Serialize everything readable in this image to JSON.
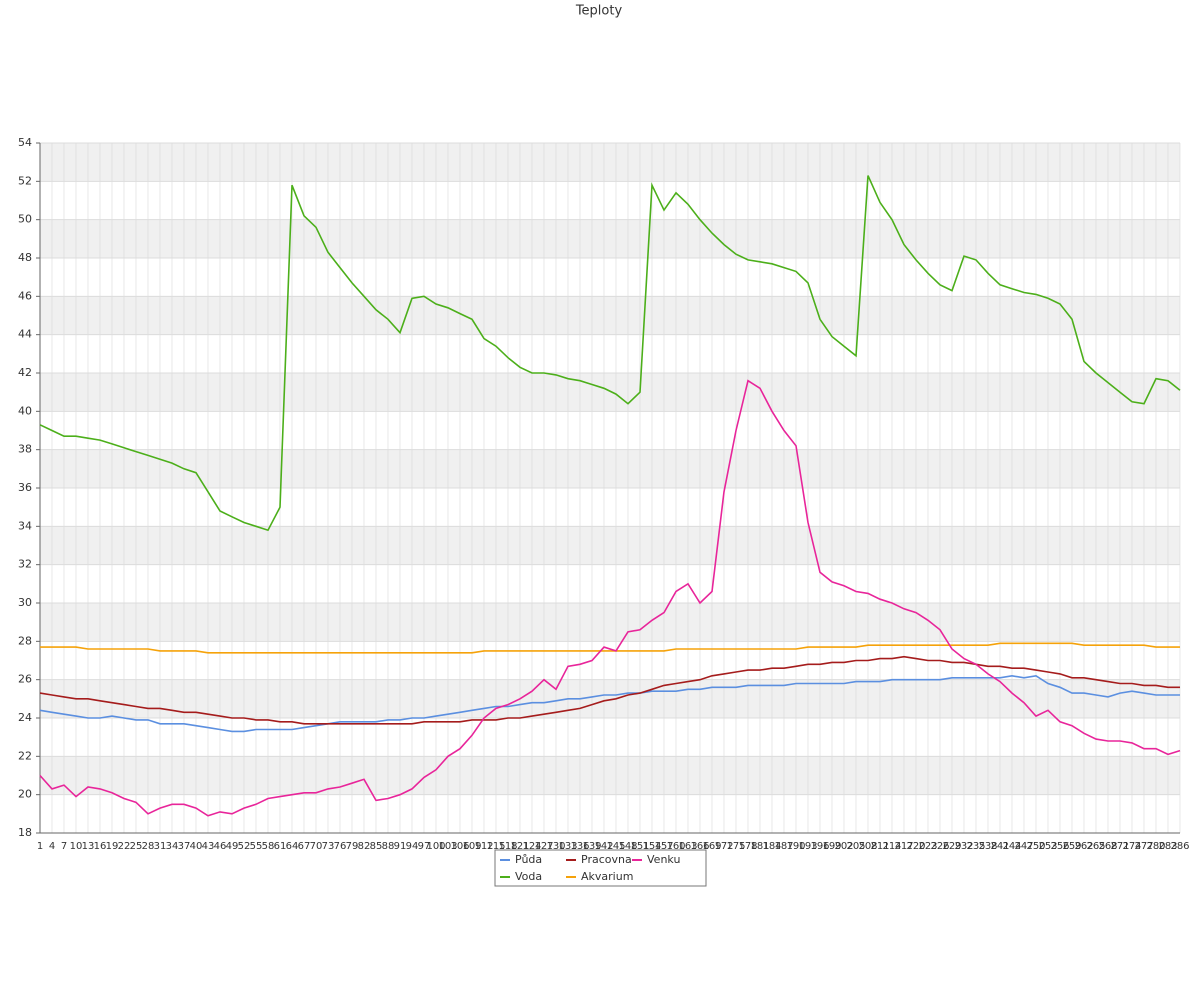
{
  "chart_data": {
    "type": "line",
    "title": "Teploty",
    "categories": [
      1,
      4,
      7,
      10,
      13,
      16,
      19,
      22,
      25,
      28,
      31,
      34,
      37,
      40,
      43,
      46,
      49,
      52,
      55,
      58,
      61,
      64,
      67,
      70,
      73,
      76,
      79,
      82,
      85,
      88,
      91,
      94,
      97,
      100,
      103,
      106,
      109,
      112,
      115,
      118,
      121,
      124,
      127,
      130,
      133,
      136,
      139,
      142,
      145,
      148,
      151,
      154,
      157,
      160,
      163,
      166,
      169,
      172,
      175,
      178,
      181,
      184,
      187,
      190,
      193,
      196,
      199,
      202,
      205,
      208,
      211,
      214,
      217,
      220,
      223,
      226,
      229,
      232,
      235,
      238,
      241,
      244,
      247,
      250,
      253,
      256,
      259,
      262,
      265,
      268,
      271,
      274,
      277,
      280,
      283,
      286
    ],
    "ylim": [
      18,
      54
    ],
    "yticks": [
      18,
      20,
      22,
      24,
      26,
      28,
      30,
      32,
      34,
      36,
      38,
      40,
      42,
      44,
      46,
      48,
      50,
      52,
      54
    ],
    "grid": true,
    "legend": "bottom",
    "series": [
      {
        "name": "Půda",
        "color": "#5b8fe0",
        "values": [
          24.4,
          24.3,
          24.2,
          24.1,
          24.0,
          24.0,
          24.1,
          24.0,
          23.9,
          23.9,
          23.7,
          23.7,
          23.7,
          23.6,
          23.5,
          23.4,
          23.3,
          23.3,
          23.4,
          23.4,
          23.4,
          23.4,
          23.5,
          23.6,
          23.7,
          23.8,
          23.8,
          23.8,
          23.8,
          23.9,
          23.9,
          24.0,
          24.0,
          24.1,
          24.2,
          24.3,
          24.4,
          24.5,
          24.6,
          24.6,
          24.7,
          24.8,
          24.8,
          24.9,
          25.0,
          25.0,
          25.1,
          25.2,
          25.2,
          25.3,
          25.3,
          25.4,
          25.4,
          25.4,
          25.5,
          25.5,
          25.6,
          25.6,
          25.6,
          25.7,
          25.7,
          25.7,
          25.7,
          25.8,
          25.8,
          25.8,
          25.8,
          25.8,
          25.9,
          25.9,
          25.9,
          26.0,
          26.0,
          26.0,
          26.0,
          26.0,
          26.1,
          26.1,
          26.1,
          26.1,
          26.1,
          26.2,
          26.1,
          26.2,
          25.8,
          25.6,
          25.3,
          25.3,
          25.2,
          25.1,
          25.3,
          25.4,
          25.3,
          25.2,
          25.2,
          25.2
        ]
      },
      {
        "name": "Voda",
        "color": "#4caf1a",
        "values": [
          39.3,
          39.0,
          38.7,
          38.7,
          38.6,
          38.5,
          38.3,
          38.1,
          37.9,
          37.7,
          37.5,
          37.3,
          37.0,
          36.8,
          35.8,
          34.8,
          34.5,
          34.2,
          34.0,
          33.8,
          35.0,
          51.8,
          50.2,
          49.6,
          48.3,
          47.5,
          46.7,
          46.0,
          45.3,
          44.8,
          44.1,
          45.9,
          46.0,
          45.6,
          45.4,
          45.1,
          44.8,
          43.8,
          43.4,
          42.8,
          42.3,
          42.0,
          42.0,
          41.9,
          41.7,
          41.6,
          41.4,
          41.2,
          40.9,
          40.4,
          41.0,
          51.8,
          50.5,
          51.4,
          50.8,
          50.0,
          49.3,
          48.7,
          48.2,
          47.9,
          47.8,
          47.7,
          47.5,
          47.3,
          46.7,
          44.8,
          43.9,
          43.4,
          42.9,
          52.3,
          50.9,
          50.0,
          48.7,
          47.9,
          47.2,
          46.6,
          46.3,
          48.1,
          47.9,
          47.2,
          46.6,
          46.4,
          46.2,
          46.1,
          45.9,
          45.6,
          44.8,
          42.6,
          42.0,
          41.5,
          41.0,
          40.5,
          40.4,
          41.7,
          41.6,
          41.1
        ]
      },
      {
        "name": "Pracovna",
        "color": "#a51c1c",
        "values": [
          25.3,
          25.2,
          25.1,
          25.0,
          25.0,
          24.9,
          24.8,
          24.7,
          24.6,
          24.5,
          24.5,
          24.4,
          24.3,
          24.3,
          24.2,
          24.1,
          24.0,
          24.0,
          23.9,
          23.9,
          23.8,
          23.8,
          23.7,
          23.7,
          23.7,
          23.7,
          23.7,
          23.7,
          23.7,
          23.7,
          23.7,
          23.7,
          23.8,
          23.8,
          23.8,
          23.8,
          23.9,
          23.9,
          23.9,
          24.0,
          24.0,
          24.1,
          24.2,
          24.3,
          24.4,
          24.5,
          24.7,
          24.9,
          25.0,
          25.2,
          25.3,
          25.5,
          25.7,
          25.8,
          25.9,
          26.0,
          26.2,
          26.3,
          26.4,
          26.5,
          26.5,
          26.6,
          26.6,
          26.7,
          26.8,
          26.8,
          26.9,
          26.9,
          27.0,
          27.0,
          27.1,
          27.1,
          27.2,
          27.1,
          27.0,
          27.0,
          26.9,
          26.9,
          26.8,
          26.7,
          26.7,
          26.6,
          26.6,
          26.5,
          26.4,
          26.3,
          26.1,
          26.1,
          26.0,
          25.9,
          25.8,
          25.8,
          25.7,
          25.7,
          25.6,
          25.6
        ]
      },
      {
        "name": "Akvarium",
        "color": "#f5a20a",
        "values": [
          27.7,
          27.7,
          27.7,
          27.7,
          27.6,
          27.6,
          27.6,
          27.6,
          27.6,
          27.6,
          27.5,
          27.5,
          27.5,
          27.5,
          27.4,
          27.4,
          27.4,
          27.4,
          27.4,
          27.4,
          27.4,
          27.4,
          27.4,
          27.4,
          27.4,
          27.4,
          27.4,
          27.4,
          27.4,
          27.4,
          27.4,
          27.4,
          27.4,
          27.4,
          27.4,
          27.4,
          27.4,
          27.5,
          27.5,
          27.5,
          27.5,
          27.5,
          27.5,
          27.5,
          27.5,
          27.5,
          27.5,
          27.5,
          27.5,
          27.5,
          27.5,
          27.5,
          27.5,
          27.6,
          27.6,
          27.6,
          27.6,
          27.6,
          27.6,
          27.6,
          27.6,
          27.6,
          27.6,
          27.6,
          27.7,
          27.7,
          27.7,
          27.7,
          27.7,
          27.8,
          27.8,
          27.8,
          27.8,
          27.8,
          27.8,
          27.8,
          27.8,
          27.8,
          27.8,
          27.8,
          27.9,
          27.9,
          27.9,
          27.9,
          27.9,
          27.9,
          27.9,
          27.8,
          27.8,
          27.8,
          27.8,
          27.8,
          27.8,
          27.7,
          27.7,
          27.7
        ]
      },
      {
        "name": "Venku",
        "color": "#e8259a",
        "values": [
          21.0,
          20.3,
          20.5,
          19.9,
          20.4,
          20.3,
          20.1,
          19.8,
          19.6,
          19.0,
          19.3,
          19.5,
          19.5,
          19.3,
          18.9,
          19.1,
          19.0,
          19.3,
          19.5,
          19.8,
          19.9,
          20.0,
          20.1,
          20.1,
          20.3,
          20.4,
          20.6,
          20.8,
          19.7,
          19.8,
          20.0,
          20.3,
          20.9,
          21.3,
          22.0,
          22.4,
          23.1,
          24.0,
          24.5,
          24.7,
          25.0,
          25.4,
          26.0,
          25.5,
          26.7,
          26.8,
          27.0,
          27.7,
          27.5,
          28.5,
          28.6,
          29.1,
          29.5,
          30.6,
          31.0,
          30.0,
          30.6,
          35.8,
          39.0,
          41.6,
          41.2,
          40.0,
          39.0,
          38.2,
          34.2,
          31.6,
          31.1,
          30.9,
          30.6,
          30.5,
          30.2,
          30.0,
          29.7,
          29.5,
          29.1,
          28.6,
          27.6,
          27.1,
          26.8,
          26.3,
          25.9,
          25.3,
          24.8,
          24.1,
          24.4,
          23.8,
          23.6,
          23.2,
          22.9,
          22.8,
          22.8,
          22.7,
          22.4,
          22.4,
          22.1,
          22.3
        ]
      }
    ]
  }
}
